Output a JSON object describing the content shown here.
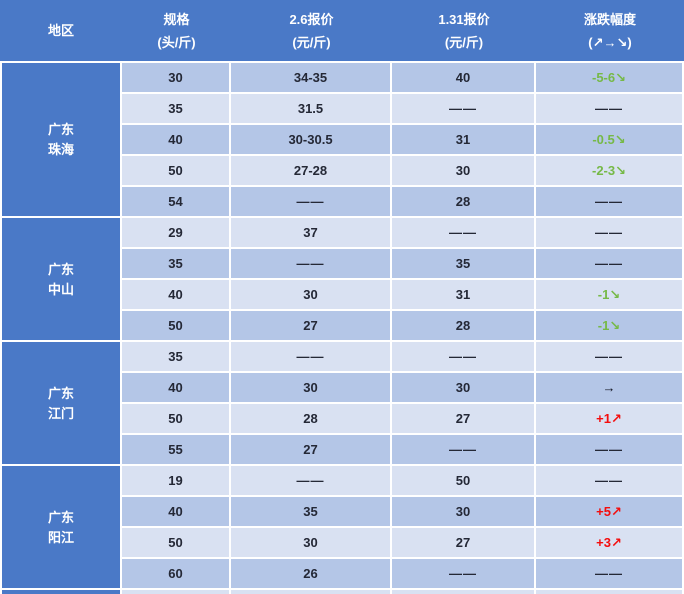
{
  "table": {
    "header": {
      "region_label": "地区",
      "columns": [
        {
          "title": "规格",
          "unit": "(头/斤)"
        },
        {
          "title": "2.6报价",
          "unit": "(元/斤)"
        },
        {
          "title": "1.31报价",
          "unit": "(元/斤)"
        },
        {
          "title": "涨跌幅度",
          "unit": "(↗→↘)"
        }
      ]
    },
    "empty_value": "——",
    "regions": [
      {
        "name": [
          "广东",
          "珠海"
        ],
        "rows": [
          {
            "spec": "30",
            "price_0206": "34-35",
            "price_0131": "40",
            "change": {
              "text": "-5-6↘",
              "type": "down"
            }
          },
          {
            "spec": "35",
            "price_0206": "31.5",
            "price_0131": "——",
            "change": {
              "text": "——",
              "type": "none"
            }
          },
          {
            "spec": "40",
            "price_0206": "30-30.5",
            "price_0131": "31",
            "change": {
              "text": "-0.5↘",
              "type": "down"
            }
          },
          {
            "spec": "50",
            "price_0206": "27-28",
            "price_0131": "30",
            "change": {
              "text": "-2-3↘",
              "type": "down"
            }
          },
          {
            "spec": "54",
            "price_0206": "——",
            "price_0131": "28",
            "change": {
              "text": "——",
              "type": "none"
            }
          }
        ]
      },
      {
        "name": [
          "广东",
          "中山"
        ],
        "rows": [
          {
            "spec": "29",
            "price_0206": "37",
            "price_0131": "——",
            "change": {
              "text": "——",
              "type": "none"
            }
          },
          {
            "spec": "35",
            "price_0206": "——",
            "price_0131": "35",
            "change": {
              "text": "——",
              "type": "none"
            }
          },
          {
            "spec": "40",
            "price_0206": "30",
            "price_0131": "31",
            "change": {
              "text": "-1↘",
              "type": "down"
            }
          },
          {
            "spec": "50",
            "price_0206": "27",
            "price_0131": "28",
            "change": {
              "text": "-1↘",
              "type": "down"
            }
          }
        ]
      },
      {
        "name": [
          "广东",
          "江门"
        ],
        "rows": [
          {
            "spec": "35",
            "price_0206": "——",
            "price_0131": "——",
            "change": {
              "text": "——",
              "type": "none"
            }
          },
          {
            "spec": "40",
            "price_0206": "30",
            "price_0131": "30",
            "change": {
              "text": "→",
              "type": "flat"
            }
          },
          {
            "spec": "50",
            "price_0206": "28",
            "price_0131": "27",
            "change": {
              "text": "+1↗",
              "type": "up"
            }
          },
          {
            "spec": "55",
            "price_0206": "27",
            "price_0131": "——",
            "change": {
              "text": "——",
              "type": "none"
            }
          }
        ]
      },
      {
        "name": [
          "广东",
          "阳江"
        ],
        "rows": [
          {
            "spec": "19",
            "price_0206": "——",
            "price_0131": "50",
            "change": {
              "text": "——",
              "type": "none"
            }
          },
          {
            "spec": "40",
            "price_0206": "35",
            "price_0131": "30",
            "change": {
              "text": "+5↗",
              "type": "up"
            }
          },
          {
            "spec": "50",
            "price_0206": "30",
            "price_0131": "27",
            "change": {
              "text": "+3↗",
              "type": "up"
            }
          },
          {
            "spec": "60",
            "price_0206": "26",
            "price_0131": "——",
            "change": {
              "text": "——",
              "type": "none"
            }
          }
        ]
      }
    ],
    "partial_next_row_visible": true
  },
  "colors": {
    "header_bg": "#4A79C7",
    "region_bg": "#4A79C7",
    "row_dark": "#B4C6E7",
    "row_light": "#D9E1F2",
    "change_up_red": "#F40D0D",
    "change_down_green": "#76B947",
    "change_flat_black": "#10131F",
    "text_dark": "#242836",
    "header_text": "#FFFFFF",
    "grid_gap": "#FFFFFF"
  }
}
